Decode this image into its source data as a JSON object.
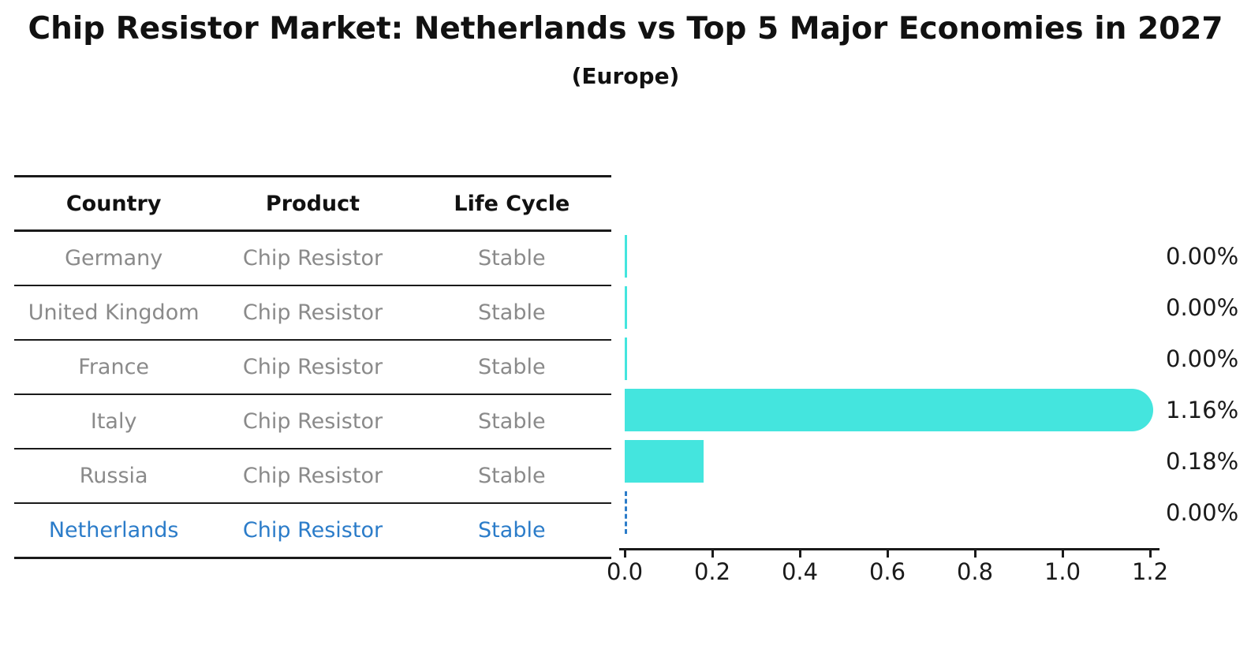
{
  "title": "Chip Resistor Market: Netherlands vs Top 5 Major Economies in 2027",
  "subtitle": "(Europe)",
  "table": {
    "headers": [
      "Country",
      "Product",
      "Life Cycle"
    ],
    "rows": [
      {
        "country": "Germany",
        "product": "Chip Resistor",
        "life_cycle": "Stable"
      },
      {
        "country": "United Kingdom",
        "product": "Chip Resistor",
        "life_cycle": "Stable"
      },
      {
        "country": "France",
        "product": "Chip Resistor",
        "life_cycle": "Stable"
      },
      {
        "country": "Italy",
        "product": "Chip Resistor",
        "life_cycle": "Stable"
      },
      {
        "country": "Russia",
        "product": "Chip Resistor",
        "life_cycle": "Stable"
      },
      {
        "country": "Netherlands",
        "product": "Chip Resistor",
        "life_cycle": "Stable"
      }
    ]
  },
  "chart_data": {
    "type": "bar",
    "orientation": "horizontal",
    "title": "Chip Resistor Market: Netherlands vs Top 5 Major Economies in 2027",
    "subtitle": "(Europe)",
    "categories": [
      "Germany",
      "United Kingdom",
      "France",
      "Italy",
      "Russia",
      "Netherlands"
    ],
    "values": [
      0.0,
      0.0,
      0.0,
      1.16,
      0.18,
      0.0
    ],
    "value_labels": [
      "0.00%",
      "0.00%",
      "0.00%",
      "1.16%",
      "0.18%",
      "0.00%"
    ],
    "xlim": [
      0.0,
      1.2
    ],
    "x_ticks": [
      "0.0",
      "0.2",
      "0.4",
      "0.6",
      "0.8",
      "1.0",
      "1.2"
    ],
    "grid": false,
    "legend": "none",
    "highlight_index": 5,
    "bar_color": "#44E5DE",
    "highlight_color": "#2B7CC9",
    "axis_color": "#1a1a1a",
    "muted_text_color": "#8a8a8a"
  }
}
